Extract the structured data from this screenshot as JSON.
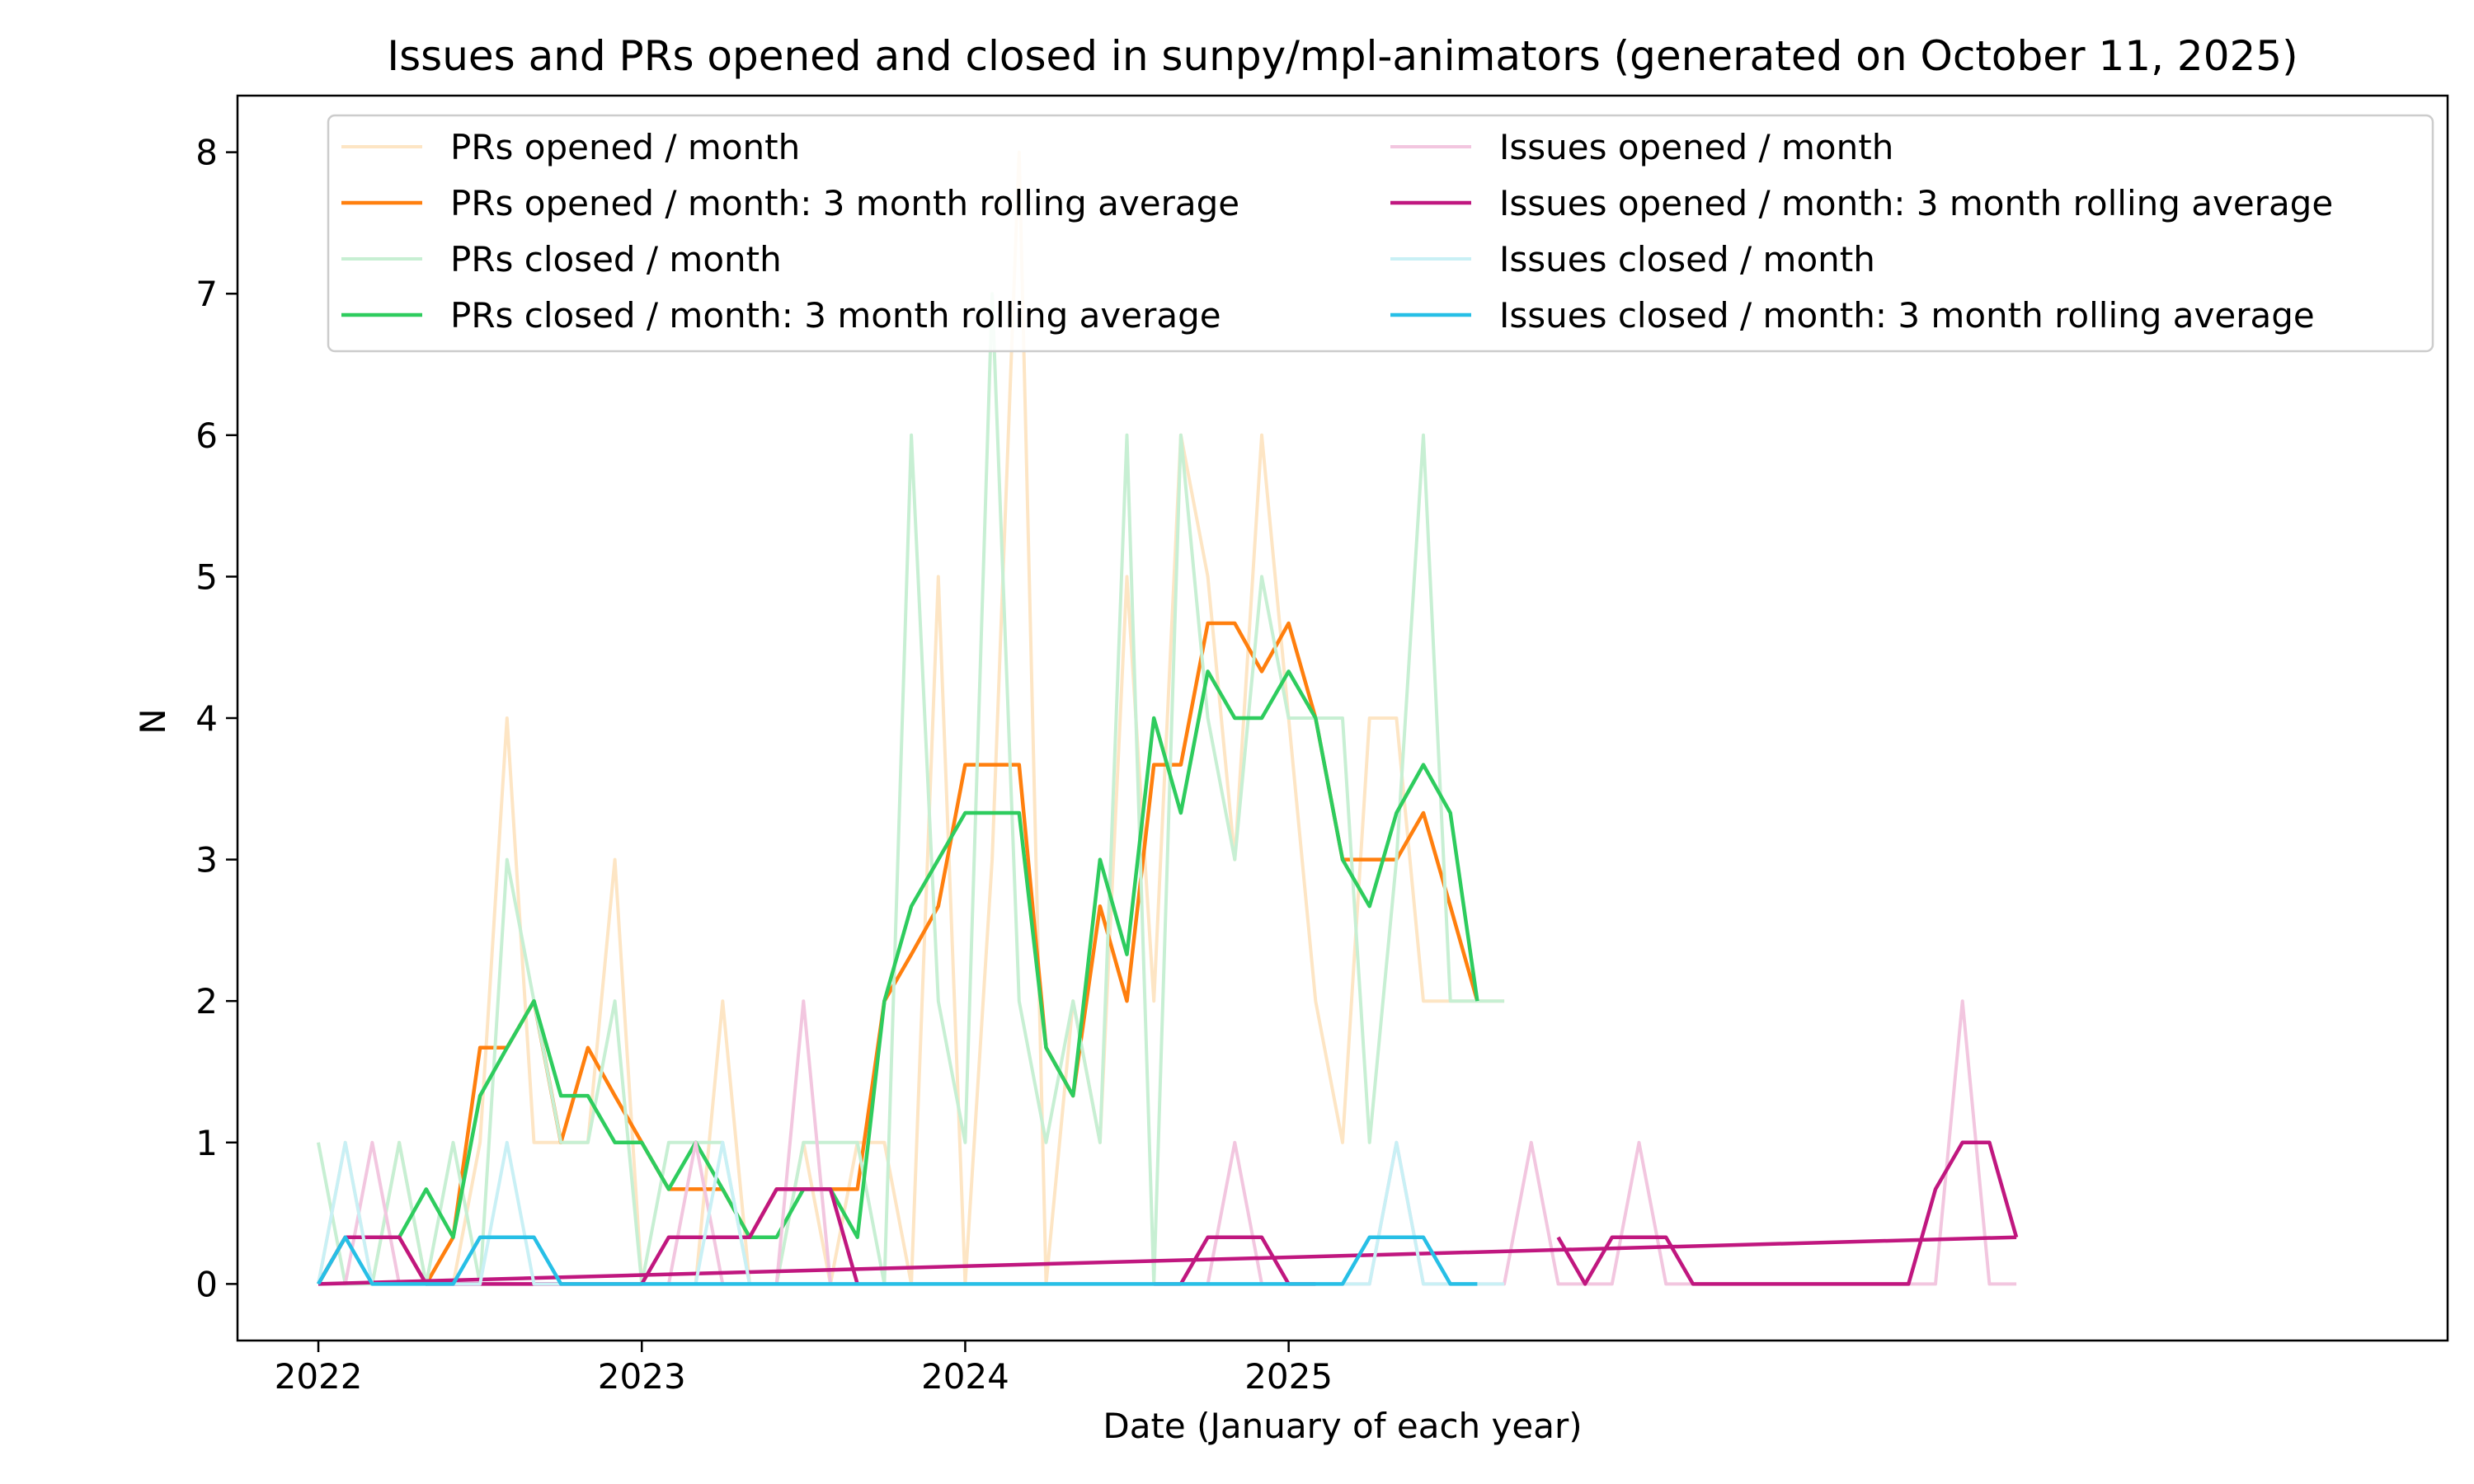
{
  "chart_data": {
    "type": "line",
    "title": "Issues and PRs opened and closed in sunpy/mpl-animators (generated on October 11, 2025)",
    "xlabel": "Date (January of each year)",
    "ylabel": "N",
    "ylim": [
      -0.4,
      8.4
    ],
    "yticks": [
      0,
      1,
      2,
      3,
      4,
      5,
      6,
      7,
      8
    ],
    "xlim": [
      "2021-10",
      "2028-08"
    ],
    "xticks": [
      {
        "date": "2022-01",
        "label": "2022"
      },
      {
        "date": "2023-01",
        "label": "2023"
      },
      {
        "date": "2024-01",
        "label": "2024"
      },
      {
        "date": "2025-01",
        "label": "2025"
      }
    ],
    "grid": false,
    "legend": {
      "placement": "top",
      "columns": 2
    },
    "series": [
      {
        "name": "PRs opened / month",
        "color": "#fde5c4",
        "width": 4,
        "x": [
          "2022-01",
          "2022-02",
          "2022-03",
          "2022-04",
          "2022-05",
          "2022-06",
          "2022-07",
          "2022-08",
          "2022-09",
          "2022-10",
          "2022-11",
          "2022-12",
          "2023-01",
          "2023-02",
          "2023-03",
          "2023-04",
          "2023-05",
          "2023-06",
          "2023-07",
          "2023-08",
          "2023-09",
          "2023-10",
          "2023-11",
          "2023-12",
          "2024-01",
          "2024-02",
          "2024-03",
          "2024-04",
          "2024-05",
          "2024-06",
          "2024-07",
          "2024-08",
          "2024-09",
          "2024-10",
          "2024-11",
          "2024-12",
          "2025-01",
          "2025-02",
          "2025-03",
          "2025-04",
          "2025-05",
          "2025-06",
          "2025-07",
          "2025-08",
          "2025-09"
        ],
        "y": [
          0,
          1,
          0,
          1,
          0,
          0,
          1,
          4,
          1,
          1,
          1,
          3,
          0,
          0,
          0,
          2,
          0,
          0,
          1,
          0,
          1,
          1,
          0,
          5,
          0,
          3,
          8,
          0,
          2,
          1,
          5,
          2,
          6,
          5,
          3,
          6,
          4,
          2,
          1,
          4,
          4,
          2,
          2,
          2,
          2
        ]
      },
      {
        "name": "PRs opened / month: 3 month rolling average",
        "color": "#ff7f0e",
        "width": 4.5,
        "x": [
          "2022-01",
          "2022-02",
          "2022-03",
          "2022-04",
          "2022-05",
          "2022-06",
          "2022-07",
          "2022-08",
          "2022-09",
          "2022-10",
          "2022-11",
          "2022-12",
          "2023-01",
          "2023-02",
          "2023-03",
          "2023-04",
          "2023-05",
          "2023-06",
          "2023-07",
          "2023-08",
          "2023-09",
          "2023-10",
          "2023-11",
          "2023-12",
          "2024-01",
          "2024-02",
          "2024-03",
          "2024-04",
          "2024-05",
          "2024-06",
          "2024-07",
          "2024-08",
          "2024-09",
          "2024-10",
          "2024-11",
          "2024-12",
          "2025-01",
          "2025-02",
          "2025-03",
          "2025-04",
          "2025-05",
          "2025-06",
          "2025-07",
          "2025-08"
        ],
        "y": [
          0,
          0.33,
          0.33,
          0.33,
          0,
          0.33,
          1.67,
          1.67,
          2,
          1,
          1.67,
          1.33,
          1,
          0.67,
          0.67,
          0.67,
          0.33,
          0.67,
          0.67,
          0.67,
          0.67,
          2,
          2.33,
          2.67,
          3.67,
          3.67,
          3.67,
          1.67,
          1.33,
          2.67,
          2,
          3.67,
          3.67,
          4.67,
          4.67,
          4.33,
          4.67,
          4,
          3,
          3,
          3,
          3.33,
          2.67,
          2
        ]
      },
      {
        "name": "PRs closed / month",
        "color": "#c7efd3",
        "width": 4,
        "x": [
          "2022-01",
          "2022-02",
          "2022-03",
          "2022-04",
          "2022-05",
          "2022-06",
          "2022-07",
          "2022-08",
          "2022-09",
          "2022-10",
          "2022-11",
          "2022-12",
          "2023-01",
          "2023-02",
          "2023-03",
          "2023-04",
          "2023-05",
          "2023-06",
          "2023-07",
          "2023-08",
          "2023-09",
          "2023-10",
          "2023-11",
          "2023-12",
          "2024-01",
          "2024-02",
          "2024-03",
          "2024-04",
          "2024-05",
          "2024-06",
          "2024-07",
          "2024-08",
          "2024-09",
          "2024-10",
          "2024-11",
          "2024-12",
          "2025-01",
          "2025-02",
          "2025-03",
          "2025-04",
          "2025-05",
          "2025-06",
          "2025-07",
          "2025-08",
          "2025-09"
        ],
        "y": [
          1,
          0,
          0,
          1,
          0,
          1,
          0,
          3,
          2,
          1,
          1,
          2,
          0,
          1,
          1,
          1,
          0,
          0,
          1,
          1,
          1,
          0,
          6,
          2,
          1,
          7,
          2,
          1,
          2,
          1,
          6,
          0,
          6,
          4,
          3,
          5,
          4,
          4,
          4,
          1,
          3,
          6,
          2,
          2,
          2
        ]
      },
      {
        "name": "PRs closed / month: 3 month rolling average",
        "color": "#2ecc5e",
        "width": 4.5,
        "x": [
          "2022-01",
          "2022-02",
          "2022-03",
          "2022-04",
          "2022-05",
          "2022-06",
          "2022-07",
          "2022-08",
          "2022-09",
          "2022-10",
          "2022-11",
          "2022-12",
          "2023-01",
          "2023-02",
          "2023-03",
          "2023-04",
          "2023-05",
          "2023-06",
          "2023-07",
          "2023-08",
          "2023-09",
          "2023-10",
          "2023-11",
          "2023-12",
          "2024-01",
          "2024-02",
          "2024-03",
          "2024-04",
          "2024-05",
          "2024-06",
          "2024-07",
          "2024-08",
          "2024-09",
          "2024-10",
          "2024-11",
          "2024-12",
          "2025-01",
          "2025-02",
          "2025-03",
          "2025-04",
          "2025-05",
          "2025-06",
          "2025-07",
          "2025-08"
        ],
        "y": [
          0,
          0.33,
          0.33,
          0.33,
          0.67,
          0.33,
          1.33,
          1.67,
          2,
          1.33,
          1.33,
          1,
          1,
          0.67,
          1,
          0.67,
          0.33,
          0.33,
          0.67,
          0.67,
          0.33,
          2,
          2.67,
          3,
          3.33,
          3.33,
          3.33,
          1.67,
          1.33,
          3,
          2.33,
          4,
          3.33,
          4.33,
          4,
          4,
          4.33,
          4,
          3,
          2.67,
          3.33,
          3.67,
          3.33,
          2
        ]
      },
      {
        "name": "Issues opened / month",
        "color": "#f2c6df",
        "width": 4,
        "x": [
          "2022-01",
          "2022-02",
          "2022-03",
          "2022-04",
          "2022-05",
          "2022-06",
          "2022-07",
          "2022-08",
          "2022-09",
          "2022-10",
          "2022-11",
          "2022-12",
          "2023-01",
          "2023-02",
          "2023-03",
          "2023-04",
          "2023-05",
          "2023-06",
          "2023-07",
          "2023-08",
          "2023-09",
          "2023-10",
          "2023-11",
          "2023-12",
          "2024-01",
          "2024-02",
          "2024-03",
          "2024-04",
          "2024-05",
          "2024-06",
          "2024-07",
          "2024-08",
          "2024-09",
          "2024-10",
          "2024-11",
          "2024-12",
          "2025-01",
          "2025-02",
          "2025-03",
          "2025-04",
          "2025-05",
          "2025-06",
          "2025-07",
          "2025-08",
          "2025-09",
          "2025-10",
          "2025-11",
          "2025-12",
          "2026-01",
          "2026-02",
          "2026-03",
          "2026-04",
          "2026-05",
          "2026-06",
          "2026-07",
          "2026-08",
          "2026-09",
          "2026-10",
          "2026-11",
          "2026-12",
          "2027-01",
          "2027-02",
          "2027-03",
          "2027-04"
        ],
        "y": [
          0,
          0,
          1,
          0,
          0,
          0,
          0,
          0,
          0,
          0,
          0,
          0,
          0,
          0,
          1,
          0,
          0,
          0,
          2,
          0,
          0,
          0,
          0,
          0,
          0,
          0,
          0,
          0,
          0,
          0,
          0,
          0,
          0,
          0,
          1,
          0,
          0,
          0,
          0,
          0,
          1,
          0,
          0,
          0,
          0,
          1,
          0,
          0,
          0,
          1,
          0,
          0,
          0,
          0,
          0,
          0,
          0,
          0,
          0,
          0,
          0,
          2,
          0,
          0
        ]
      },
      {
        "name": "Issues opened / month: 3 month rolling average",
        "color": "#c0177f",
        "width": 4.5,
        "segments": [
          {
            "x": [
              "2022-01",
              "2022-02",
              "2022-03",
              "2022-04",
              "2022-05",
              "2022-06",
              "2022-07",
              "2022-08",
              "2022-09",
              "2022-10",
              "2022-11",
              "2022-12",
              "2023-01",
              "2023-02",
              "2023-03",
              "2023-04",
              "2023-05",
              "2023-06",
              "2023-07",
              "2023-08",
              "2023-09"
            ],
            "y": [
              0,
              0.33,
              0.33,
              0.33,
              0,
              0,
              0,
              0,
              0,
              0,
              0,
              0,
              0,
              0.33,
              0.33,
              0.33,
              0.33,
              0.67,
              0.67,
              0.67,
              0
            ]
          },
          {
            "x": [
              "2024-08",
              "2024-09",
              "2024-10",
              "2024-11",
              "2024-12",
              "2025-01",
              "2025-02"
            ],
            "y": [
              0,
              0,
              0.33,
              0.33,
              0.33,
              0,
              0
            ]
          },
          {
            "x": [
              "2025-11",
              "2025-12",
              "2026-01",
              "2026-02",
              "2026-03",
              "2026-04",
              "2026-05",
              "2026-06",
              "2026-07",
              "2026-08",
              "2026-09",
              "2026-10",
              "2026-11",
              "2026-12",
              "2027-01",
              "2027-02",
              "2027-03",
              "2027-04"
            ],
            "y": [
              0.33,
              0,
              0.33,
              0.33,
              0.33,
              0,
              0,
              0,
              0,
              0,
              0,
              0,
              0,
              0,
              0.67,
              1,
              1,
              0.33
            ]
          },
          {
            "x": [
              "2022-01",
              "2027-04"
            ],
            "y": [
              0,
              0.33
            ]
          }
        ]
      },
      {
        "name": "Issues closed / month",
        "color": "#c9f0f5",
        "width": 4,
        "x": [
          "2022-01",
          "2022-02",
          "2022-03",
          "2022-04",
          "2022-05",
          "2022-06",
          "2022-07",
          "2022-08",
          "2022-09",
          "2022-10",
          "2022-11",
          "2022-12",
          "2023-01",
          "2023-02",
          "2023-03",
          "2023-04",
          "2023-05",
          "2023-06",
          "2023-07",
          "2023-08",
          "2023-09",
          "2023-10",
          "2023-11",
          "2023-12",
          "2024-01",
          "2024-02",
          "2024-03",
          "2024-04",
          "2024-05",
          "2024-06",
          "2024-07",
          "2024-08",
          "2024-09",
          "2024-10",
          "2024-11",
          "2024-12",
          "2025-01",
          "2025-02",
          "2025-03",
          "2025-04",
          "2025-05",
          "2025-06",
          "2025-07",
          "2025-08",
          "2025-09"
        ],
        "y": [
          0,
          1,
          0,
          0,
          0,
          0,
          0,
          1,
          0,
          0,
          0,
          0,
          0,
          0,
          0,
          1,
          0,
          0,
          0,
          0,
          0,
          0,
          0,
          0,
          0,
          0,
          0,
          0,
          0,
          0,
          0,
          0,
          0,
          0,
          0,
          0,
          0,
          0,
          0,
          0,
          1,
          0,
          0,
          0,
          0
        ]
      },
      {
        "name": "Issues closed / month: 3 month rolling average",
        "color": "#27bfe6",
        "width": 4.5,
        "x": [
          "2022-01",
          "2022-02",
          "2022-03",
          "2022-04",
          "2022-05",
          "2022-06",
          "2022-07",
          "2022-08",
          "2022-09",
          "2022-10",
          "2022-11",
          "2022-12",
          "2023-01",
          "2023-02",
          "2023-03",
          "2023-04",
          "2023-05",
          "2023-06",
          "2023-07",
          "2023-08",
          "2023-09",
          "2023-10",
          "2023-11",
          "2023-12",
          "2024-01",
          "2024-02",
          "2024-03",
          "2024-04",
          "2024-05",
          "2024-06",
          "2024-07",
          "2024-08",
          "2024-09",
          "2024-10",
          "2024-11",
          "2024-12",
          "2025-01",
          "2025-02",
          "2025-03",
          "2025-04",
          "2025-05",
          "2025-06",
          "2025-07",
          "2025-08"
        ],
        "y": [
          0,
          0.33,
          0,
          0,
          0,
          0,
          0.33,
          0.33,
          0.33,
          0,
          0,
          0,
          0,
          0,
          0,
          0,
          0,
          0,
          0,
          0,
          0,
          0,
          0,
          0,
          0,
          0,
          0,
          0,
          0,
          0,
          0,
          0,
          0,
          0,
          0,
          0,
          0,
          0,
          0,
          0.33,
          0.33,
          0.33,
          0,
          0
        ]
      }
    ]
  }
}
